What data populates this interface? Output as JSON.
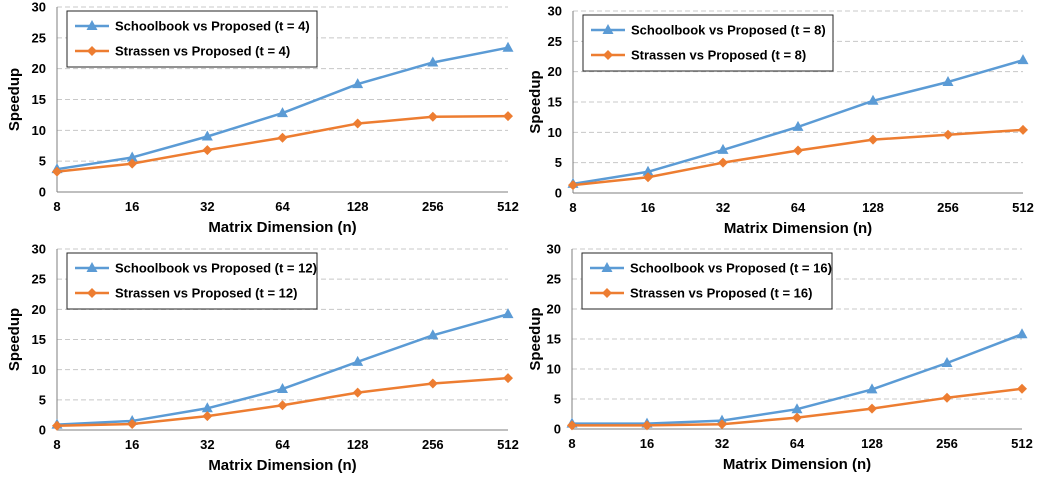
{
  "chart_data": [
    {
      "type": "line",
      "categories": [
        "8",
        "16",
        "32",
        "64",
        "128",
        "256",
        "512"
      ],
      "xlabel": "Matrix Dimension (n)",
      "ylabel": "Speedup",
      "ylim": [
        0,
        30
      ],
      "yticks": [
        0,
        5,
        10,
        15,
        20,
        25,
        30
      ],
      "grid": "horizontal dashed",
      "legend_position": "top-left",
      "series": [
        {
          "name": "Schoolbook vs Proposed (t = 4)",
          "marker": "triangle",
          "color": "#5b9bd5",
          "values": [
            3.7,
            5.6,
            9.0,
            12.8,
            17.5,
            21.0,
            23.4
          ]
        },
        {
          "name": "Strassen vs Proposed (t = 4)",
          "marker": "diamond",
          "color": "#ed7d31",
          "values": [
            3.3,
            4.6,
            6.8,
            8.8,
            11.1,
            12.2,
            12.3
          ]
        }
      ]
    },
    {
      "type": "line",
      "categories": [
        "8",
        "16",
        "32",
        "64",
        "128",
        "256",
        "512"
      ],
      "xlabel": "Matrix Dimension (n)",
      "ylabel": "Speedup",
      "ylim": [
        0,
        30
      ],
      "yticks": [
        0,
        5,
        10,
        15,
        20,
        25,
        30
      ],
      "grid": "horizontal dashed",
      "legend_position": "top-left",
      "series": [
        {
          "name": "Schoolbook vs Proposed (t = 8)",
          "marker": "triangle",
          "color": "#5b9bd5",
          "values": [
            1.5,
            3.5,
            7.1,
            10.9,
            15.2,
            18.3,
            21.9
          ]
        },
        {
          "name": "Strassen vs Proposed (t = 8)",
          "marker": "diamond",
          "color": "#ed7d31",
          "values": [
            1.3,
            2.6,
            5.0,
            7.0,
            8.8,
            9.6,
            10.4
          ]
        }
      ]
    },
    {
      "type": "line",
      "categories": [
        "8",
        "16",
        "32",
        "64",
        "128",
        "256",
        "512"
      ],
      "xlabel": "Matrix Dimension (n)",
      "ylabel": "Speedup",
      "ylim": [
        0,
        30
      ],
      "yticks": [
        0,
        5,
        10,
        15,
        20,
        25,
        30
      ],
      "grid": "horizontal dashed",
      "legend_position": "top-left",
      "series": [
        {
          "name": "Schoolbook vs Proposed (t = 12)",
          "marker": "triangle",
          "color": "#5b9bd5",
          "values": [
            0.9,
            1.5,
            3.6,
            6.8,
            11.3,
            15.7,
            19.2
          ]
        },
        {
          "name": "Strassen vs Proposed (t = 12)",
          "marker": "diamond",
          "color": "#ed7d31",
          "values": [
            0.7,
            1.0,
            2.3,
            4.1,
            6.2,
            7.7,
            8.6
          ]
        }
      ]
    },
    {
      "type": "line",
      "categories": [
        "8",
        "16",
        "32",
        "64",
        "128",
        "256",
        "512"
      ],
      "xlabel": "Matrix Dimension (n)",
      "ylabel": "Speedup",
      "ylim": [
        0,
        30
      ],
      "yticks": [
        0,
        5,
        10,
        15,
        20,
        25,
        30
      ],
      "grid": "horizontal dashed",
      "legend_position": "top-left",
      "series": [
        {
          "name": "Schoolbook vs Proposed (t = 16)",
          "marker": "triangle",
          "color": "#5b9bd5",
          "values": [
            0.9,
            0.9,
            1.4,
            3.3,
            6.6,
            11.0,
            15.8
          ]
        },
        {
          "name": "Strassen vs Proposed (t = 16)",
          "marker": "diamond",
          "color": "#ed7d31",
          "values": [
            0.6,
            0.6,
            0.8,
            1.9,
            3.4,
            5.2,
            6.7
          ]
        }
      ]
    }
  ]
}
